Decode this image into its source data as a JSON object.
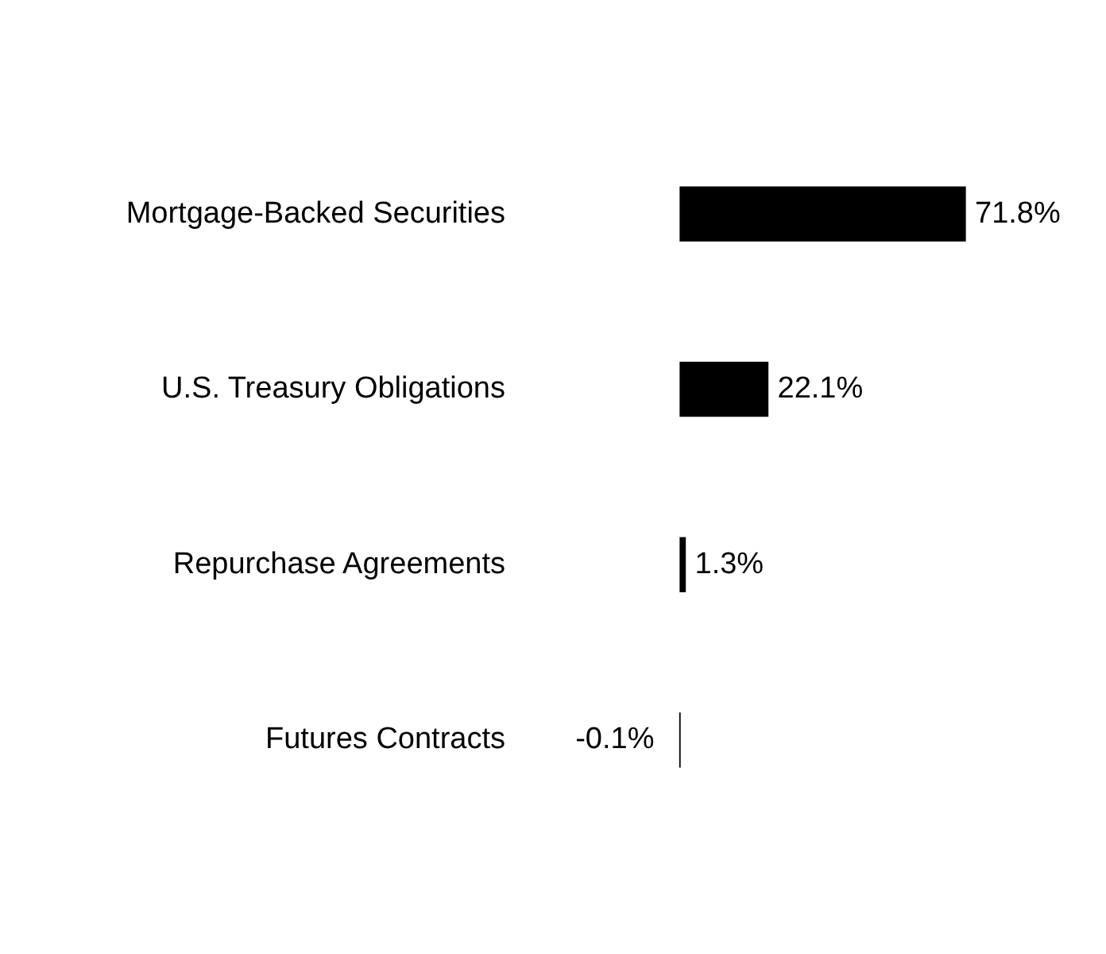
{
  "chart_data": {
    "type": "bar",
    "orientation": "horizontal",
    "categories": [
      "Mortgage-Backed Securities",
      "U.S. Treasury Obligations",
      "Repurchase Agreements",
      "Futures Contracts"
    ],
    "values": [
      71.8,
      22.1,
      1.3,
      -0.1
    ],
    "value_labels": [
      "71.8%",
      "22.1%",
      "1.3%",
      "-0.1%"
    ],
    "color": "#000000",
    "grid": false,
    "legend": false,
    "tick_labels": "y"
  }
}
